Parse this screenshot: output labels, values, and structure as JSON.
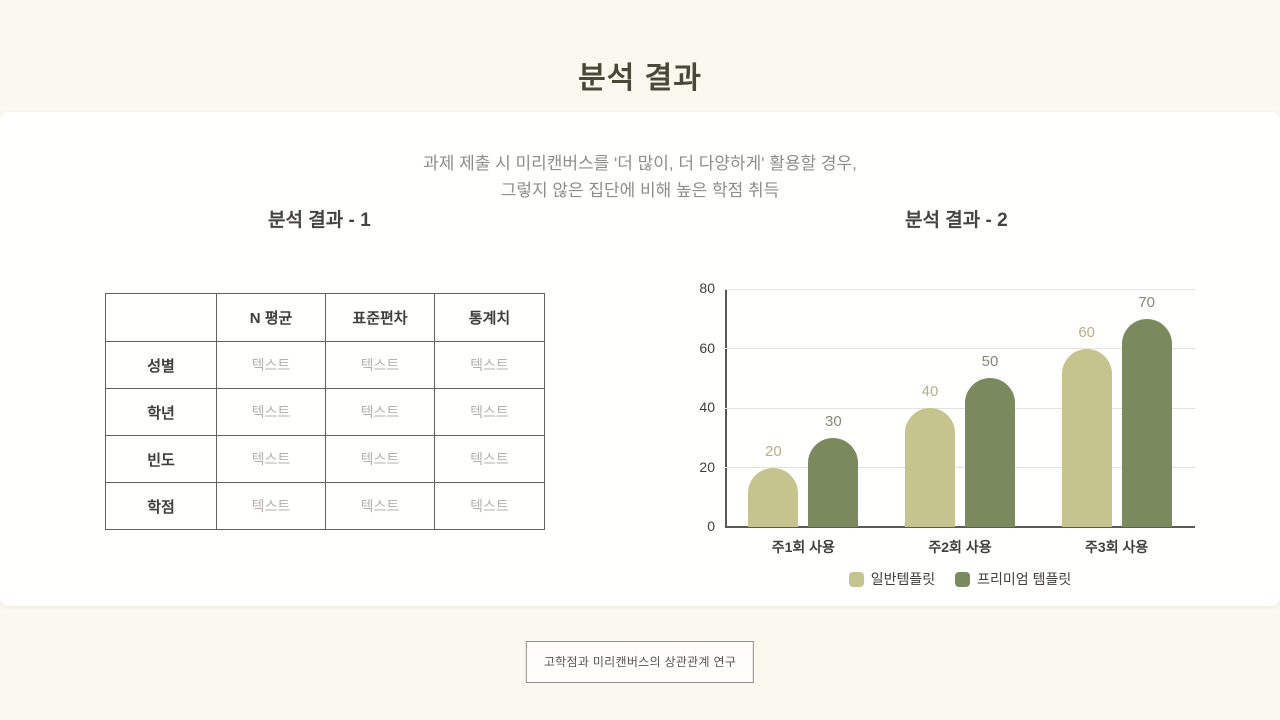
{
  "page": {
    "title": "분석 결과"
  },
  "card": {
    "subtitle_line1": "과제 제출 시 미리캔버스를 '더 많이, 더 다양하게' 활용할 경우,",
    "subtitle_line2": "그렇지 않은 집단에 비해 높은 학점 취득",
    "section1_title": "분석 결과 - 1",
    "section2_title": "분석 결과 - 2"
  },
  "table": {
    "columns": [
      "",
      "N 평균",
      "표준편차",
      "통계치"
    ],
    "rows": [
      {
        "label": "성별",
        "cells": [
          "텍스트",
          "텍스트",
          "텍스트"
        ]
      },
      {
        "label": "학년",
        "cells": [
          "텍스트",
          "텍스트",
          "텍스트"
        ]
      },
      {
        "label": "빈도",
        "cells": [
          "텍스트",
          "텍스트",
          "텍스트"
        ]
      },
      {
        "label": "학점",
        "cells": [
          "텍스트",
          "텍스트",
          "텍스트"
        ]
      }
    ]
  },
  "chart_data": {
    "type": "bar",
    "categories": [
      "주1회 사용",
      "주2회 사용",
      "주3회 사용"
    ],
    "series": [
      {
        "name": "일반템플릿",
        "values": [
          20,
          40,
          60
        ],
        "color": "#c6c48e",
        "label_color": "#b3b087"
      },
      {
        "name": "프리미엄 템플릿",
        "values": [
          30,
          50,
          70
        ],
        "color": "#7b8a5e",
        "label_color": "#8b8775"
      }
    ],
    "title": "",
    "xlabel": "",
    "ylabel": "",
    "ylim": [
      0,
      80
    ],
    "yticks": [
      0,
      20,
      40,
      60,
      80
    ],
    "grid": true,
    "legend_position": "bottom"
  },
  "footer": {
    "caption": "고학점과 미리캔버스의 상관관계 연구"
  }
}
